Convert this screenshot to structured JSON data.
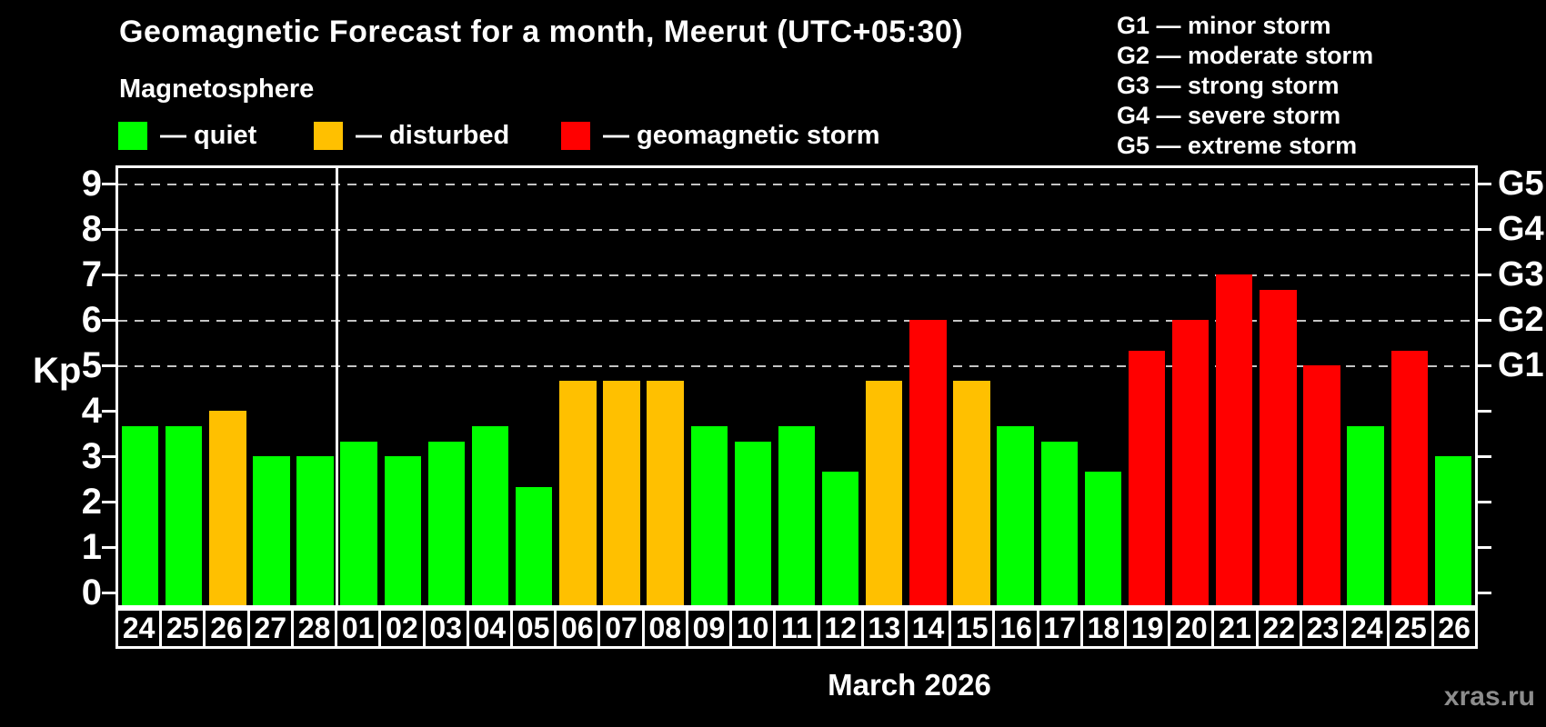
{
  "header": {
    "title": "Geomagnetic Forecast for a month, Meerut (UTC+05:30)",
    "subtitle": "Magnetosphere"
  },
  "legend": {
    "quiet_label": "— quiet",
    "disturbed_label": "— disturbed",
    "storm_label": "— geomagnetic storm"
  },
  "g_legend": [
    "G1 — minor storm",
    "G2 — moderate storm",
    "G3 — strong storm",
    "G4 — severe storm",
    "G5 — extreme storm"
  ],
  "colors": {
    "quiet": "#00ff00",
    "disturbed": "#ffc000",
    "storm": "#ff0000",
    "grid": "#c4c4c4",
    "frame": "#ffffff",
    "background": "#000000",
    "watermark_text": "#8d8d8d"
  },
  "axis": {
    "ylabel": "Kp",
    "yticks": [
      "0",
      "1",
      "2",
      "3",
      "4",
      "5",
      "6",
      "7",
      "8",
      "9"
    ],
    "right_labels": [
      {
        "kp": 5,
        "label": "G1"
      },
      {
        "kp": 6,
        "label": "G2"
      },
      {
        "kp": 7,
        "label": "G3"
      },
      {
        "kp": 8,
        "label": "G4"
      },
      {
        "kp": 9,
        "label": "G5"
      }
    ],
    "xlabel": "March 2026"
  },
  "watermark": "xras.ru",
  "chart_data": {
    "type": "bar",
    "title": "Geomagnetic Forecast for a month, Meerut (UTC+05:30)",
    "ylabel": "Kp",
    "ylim": [
      0,
      9
    ],
    "grid_levels": [
      5,
      6,
      7,
      8,
      9
    ],
    "grid_on": true,
    "month_separator_after_index": 4,
    "categories": [
      "24",
      "25",
      "26",
      "27",
      "28",
      "01",
      "02",
      "03",
      "04",
      "05",
      "06",
      "07",
      "08",
      "09",
      "10",
      "11",
      "12",
      "13",
      "14",
      "15",
      "16",
      "17",
      "18",
      "19",
      "20",
      "21",
      "22",
      "23",
      "24",
      "25",
      "26"
    ],
    "values": [
      3.67,
      3.67,
      4.0,
      3.0,
      3.0,
      3.33,
      3.0,
      3.33,
      3.67,
      2.33,
      4.67,
      4.67,
      4.67,
      3.67,
      3.33,
      3.67,
      2.67,
      4.67,
      6.0,
      4.67,
      3.67,
      3.33,
      2.67,
      5.33,
      6.0,
      7.0,
      6.67,
      5.0,
      3.67,
      5.33,
      3.0
    ],
    "levels": [
      "quiet",
      "quiet",
      "disturbed",
      "quiet",
      "quiet",
      "quiet",
      "quiet",
      "quiet",
      "quiet",
      "quiet",
      "disturbed",
      "disturbed",
      "disturbed",
      "quiet",
      "quiet",
      "quiet",
      "quiet",
      "disturbed",
      "storm",
      "disturbed",
      "quiet",
      "quiet",
      "quiet",
      "storm",
      "storm",
      "storm",
      "storm",
      "storm",
      "quiet",
      "storm",
      "quiet"
    ]
  }
}
